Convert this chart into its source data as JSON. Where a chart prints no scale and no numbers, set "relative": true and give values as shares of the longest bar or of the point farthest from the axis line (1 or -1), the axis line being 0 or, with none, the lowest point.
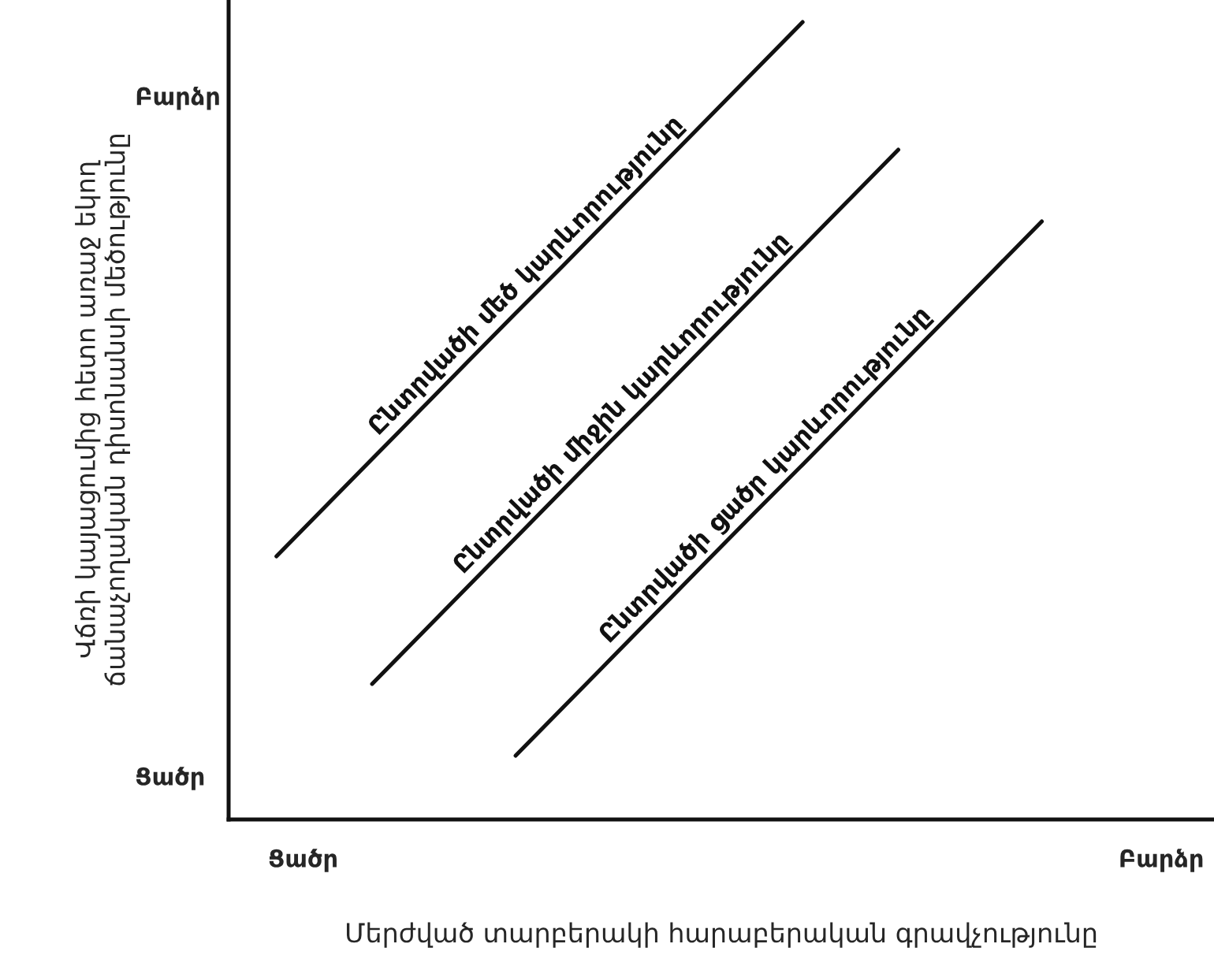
{
  "chart_data": {
    "type": "line",
    "relative": true,
    "xlabel": "Մերժված տարբերակի հարաբերական գրավչությունը",
    "ylabel": "Վճռի կայացումից հետո առաջ եկող\nճանաչողական դիսոնանսի մեծությունը",
    "annotations": [
      "Բարձր",
      "Ցածր",
      "Ցածր",
      "Բարձր"
    ],
    "categories": [
      null,
      null,
      null,
      null,
      null,
      null,
      null,
      null,
      null,
      null,
      null,
      null,
      null,
      null,
      null,
      null,
      null
    ],
    "series": [
      {
        "name": "Ընտրվածի մեծ կարևորությունը",
        "color": "#111111",
        "values": [
          0.33,
          0.391,
          0.452,
          0.513,
          0.574,
          0.635,
          0.695,
          0.756,
          0.817,
          0.878,
          0.939,
          1.0,
          null,
          null,
          null,
          null,
          null
        ]
      },
      {
        "name": "Ընտրվածի միջին կարևորությունը",
        "color": "#111111",
        "values": [
          null,
          null,
          0.17,
          0.231,
          0.292,
          0.353,
          0.414,
          0.475,
          0.535,
          0.596,
          0.657,
          0.718,
          0.779,
          0.84,
          null,
          null,
          null
        ]
      },
      {
        "name": "Ընտրվածի ցածր կարևորությունը",
        "color": "#111111",
        "values": [
          null,
          null,
          null,
          null,
          null,
          0.08,
          0.141,
          0.202,
          0.263,
          0.324,
          0.385,
          0.445,
          0.506,
          0.567,
          0.628,
          0.689,
          0.75
        ]
      }
    ],
    "line_style": "solid",
    "marker": "none",
    "legend": false
  }
}
